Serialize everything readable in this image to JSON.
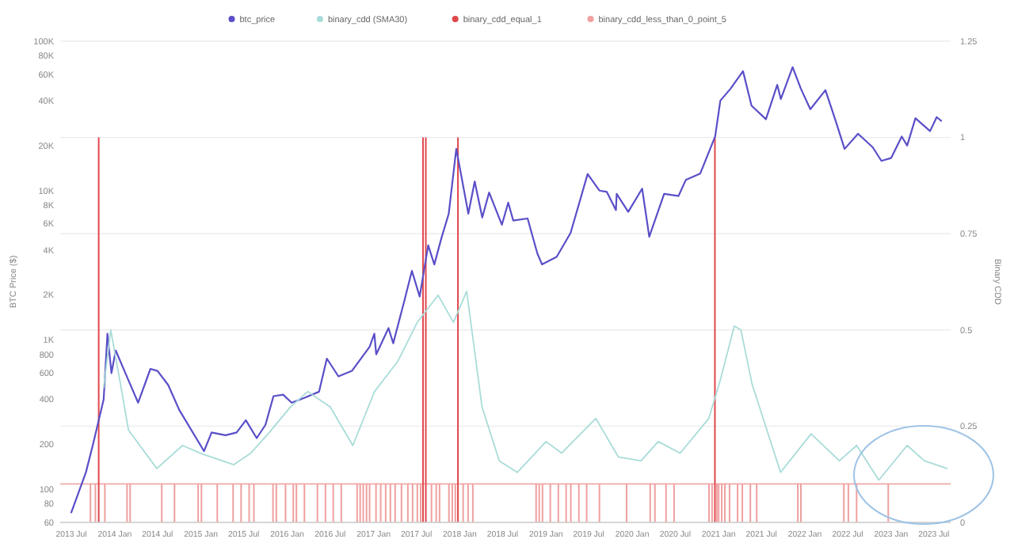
{
  "chart_data": {
    "type": "line",
    "ylabel": "BTC Price ($)",
    "y2label": "Binary CDD",
    "log": "y",
    "grid": "y",
    "legend": "top",
    "xlim": [
      "2013-05-15",
      "2023-09-10"
    ],
    "xticks": [
      {
        "value": "2013-07-01",
        "label": "2013 Jul"
      },
      {
        "value": "2014-01-01",
        "label": "2014 Jan"
      },
      {
        "value": "2014-07-01",
        "label": "2014 Jul"
      },
      {
        "value": "2015-01-01",
        "label": "2015 Jan"
      },
      {
        "value": "2015-07-01",
        "label": "2015 Jul"
      },
      {
        "value": "2016-01-01",
        "label": "2016 Jan"
      },
      {
        "value": "2016-07-01",
        "label": "2016 Jul"
      },
      {
        "value": "2017-01-01",
        "label": "2017 Jan"
      },
      {
        "value": "2017-07-01",
        "label": "2017 Jul"
      },
      {
        "value": "2018-01-01",
        "label": "2018 Jan"
      },
      {
        "value": "2018-07-01",
        "label": "2018 Jul"
      },
      {
        "value": "2019-01-01",
        "label": "2019 Jan"
      },
      {
        "value": "2019-07-01",
        "label": "2019 Jul"
      },
      {
        "value": "2020-01-01",
        "label": "2020 Jan"
      },
      {
        "value": "2020-07-01",
        "label": "2020 Jul"
      },
      {
        "value": "2021-01-01",
        "label": "2021 Jan"
      },
      {
        "value": "2021-07-01",
        "label": "2021 Jul"
      },
      {
        "value": "2022-01-01",
        "label": "2022 Jan"
      },
      {
        "value": "2022-07-01",
        "label": "2022 Jul"
      },
      {
        "value": "2023-01-01",
        "label": "2023 Jan"
      },
      {
        "value": "2023-07-01",
        "label": "2023 Jul"
      }
    ],
    "ylim": [
      60,
      100000
    ],
    "yticks": [
      60,
      80,
      100,
      200,
      400,
      600,
      800,
      {
        "value": 1000,
        "label": "1K"
      },
      {
        "value": 2000,
        "label": "2K"
      },
      {
        "value": 4000,
        "label": "4K"
      },
      {
        "value": 6000,
        "label": "6K"
      },
      {
        "value": 8000,
        "label": "8K"
      },
      {
        "value": 10000,
        "label": "10K"
      },
      {
        "value": 20000,
        "label": "20K"
      },
      {
        "value": 40000,
        "label": "40K"
      },
      {
        "value": 60000,
        "label": "60K"
      },
      {
        "value": 80000,
        "label": "80K"
      },
      {
        "value": 100000,
        "label": "100K"
      }
    ],
    "y2lim": [
      0,
      1.25
    ],
    "y2ticks": [
      0,
      0.25,
      0.5,
      0.75,
      1,
      1.25
    ],
    "ref_lines": [
      {
        "axis": "y2",
        "value": 0.1,
        "label": null,
        "color": "#f0a8a8"
      }
    ],
    "series": [
      {
        "name": "btc_price",
        "color": "#5a4fc8",
        "x": [
          "2013-07-01",
          "2013-09-01",
          "2013-10-01",
          "2013-11-15",
          "2013-12-01",
          "2013-12-18",
          "2014-01-05",
          "2014-02-25",
          "2014-04-10",
          "2014-06-01",
          "2014-07-01",
          "2014-08-15",
          "2014-10-01",
          "2015-01-14",
          "2015-02-15",
          "2015-04-15",
          "2015-06-01",
          "2015-07-10",
          "2015-08-25",
          "2015-10-01",
          "2015-11-04",
          "2015-12-15",
          "2016-01-20",
          "2016-03-15",
          "2016-05-15",
          "2016-06-17",
          "2016-08-05",
          "2016-10-01",
          "2016-12-15",
          "2017-01-04",
          "2017-01-12",
          "2017-03-05",
          "2017-03-25",
          "2017-05-10",
          "2017-06-12",
          "2017-07-15",
          "2017-08-20",
          "2017-09-15",
          "2017-10-15",
          "2017-11-15",
          "2017-12-17",
          "2018-02-06",
          "2018-03-05",
          "2018-04-06",
          "2018-05-05",
          "2018-06-28",
          "2018-07-25",
          "2018-08-15",
          "2018-10-15",
          "2018-11-25",
          "2018-12-15",
          "2019-02-15",
          "2019-04-15",
          "2019-06-26",
          "2019-08-15",
          "2019-09-15",
          "2019-10-24",
          "2019-10-27",
          "2019-12-15",
          "2020-02-12",
          "2020-03-13",
          "2020-05-15",
          "2020-07-15",
          "2020-08-15",
          "2020-10-15",
          "2020-12-17",
          "2021-01-08",
          "2021-02-20",
          "2021-04-14",
          "2021-05-20",
          "2021-07-20",
          "2021-09-06",
          "2021-09-21",
          "2021-11-10",
          "2021-12-15",
          "2022-01-24",
          "2022-03-29",
          "2022-05-12",
          "2022-06-18",
          "2022-08-14",
          "2022-10-15",
          "2022-11-21",
          "2023-01-01",
          "2023-02-15",
          "2023-03-10",
          "2023-04-14",
          "2023-06-15",
          "2023-07-13",
          "2023-08-01"
        ],
        "values": [
          70,
          130,
          200,
          400,
          1100,
          600,
          850,
          550,
          380,
          640,
          620,
          500,
          340,
          180,
          240,
          230,
          240,
          290,
          220,
          270,
          420,
          430,
          380,
          410,
          450,
          750,
          570,
          620,
          900,
          1100,
          800,
          1200,
          950,
          1800,
          2900,
          1950,
          4300,
          3200,
          4800,
          7000,
          19000,
          7000,
          11500,
          6600,
          9700,
          5900,
          8300,
          6300,
          6500,
          3800,
          3200,
          3600,
          5200,
          12900,
          10000,
          9800,
          7400,
          9500,
          7200,
          10300,
          4900,
          9500,
          9200,
          11800,
          13000,
          23000,
          40000,
          48000,
          63000,
          37000,
          30000,
          51000,
          41000,
          67000,
          48000,
          35000,
          47000,
          29000,
          19000,
          24000,
          19500,
          15800,
          16500,
          23000,
          20000,
          30500,
          25000,
          31000,
          29300
        ]
      },
      {
        "name": "binary_cdd (SMA30)",
        "type": "line",
        "axis": "y2",
        "color": "#a9dcd8",
        "x": [
          "2013-11-15",
          "2013-12-15",
          "2014-01-25",
          "2014-02-28",
          "2014-06-28",
          "2014-10-15",
          "2014-12-28",
          "2015-05-20",
          "2015-07-31",
          "2015-10-12",
          "2016-01-15",
          "2016-03-28",
          "2016-07-01",
          "2016-10-05",
          "2017-01-05",
          "2017-04-15",
          "2017-07-05",
          "2017-10-01",
          "2017-12-05",
          "2018-01-30",
          "2018-04-05",
          "2018-06-17",
          "2018-09-01",
          "2019-01-01",
          "2019-03-08",
          "2019-07-31",
          "2019-11-03",
          "2020-02-07",
          "2020-04-20",
          "2020-07-22",
          "2020-11-20",
          "2021-01-08",
          "2021-03-08",
          "2021-04-05",
          "2021-05-22",
          "2021-09-20",
          "2022-01-27",
          "2022-05-27",
          "2022-08-08",
          "2022-11-10",
          "2023-03-10",
          "2023-05-22",
          "2023-08-25"
        ],
        "values": [
          0.35,
          0.5,
          0.36,
          0.24,
          0.14,
          0.2,
          0.18,
          0.15,
          0.18,
          0.23,
          0.3,
          0.34,
          0.3,
          0.2,
          0.34,
          0.42,
          0.52,
          0.59,
          0.52,
          0.6,
          0.3,
          0.16,
          0.13,
          0.21,
          0.18,
          0.27,
          0.17,
          0.16,
          0.21,
          0.18,
          0.27,
          0.37,
          0.51,
          0.5,
          0.36,
          0.13,
          0.23,
          0.16,
          0.2,
          0.11,
          0.2,
          0.16,
          0.14
        ]
      },
      {
        "name": "binary_cdd_equal_1",
        "type": "bar",
        "axis": "y2",
        "color": "#e0474c",
        "x": [
          "2013-10-25",
          "2017-07-29",
          "2017-08-10",
          "2017-12-24",
          "2020-12-16"
        ],
        "values": [
          1,
          1,
          1,
          1,
          1
        ]
      },
      {
        "name": "binary_cdd_less_than_0_point_5",
        "type": "bar",
        "axis": "y2",
        "color": "#f0a0a0",
        "x": [
          "2013-09-20",
          "2013-10-11",
          "2013-11-20",
          "2014-02-22",
          "2014-03-07",
          "2014-07-19",
          "2014-09-11",
          "2014-12-20",
          "2015-01-03",
          "2015-03-11",
          "2015-05-17",
          "2015-06-20",
          "2015-07-24",
          "2015-08-13",
          "2015-11-02",
          "2015-11-16",
          "2015-12-25",
          "2016-01-27",
          "2016-02-09",
          "2016-03-14",
          "2016-05-08",
          "2016-06-11",
          "2016-07-14",
          "2016-08-17",
          "2016-10-23",
          "2016-11-05",
          "2016-11-18",
          "2016-12-02",
          "2016-12-15",
          "2017-01-11",
          "2017-01-31",
          "2017-02-21",
          "2017-03-13",
          "2017-04-02",
          "2017-04-29",
          "2017-05-26",
          "2017-06-15",
          "2017-07-05",
          "2017-07-19",
          "2017-09-03",
          "2017-09-23",
          "2017-10-07",
          "2017-11-16",
          "2017-11-30",
          "2017-12-13",
          "2018-01-15",
          "2018-02-05",
          "2018-02-25",
          "2018-11-20",
          "2018-12-03",
          "2018-12-17",
          "2019-01-19",
          "2019-02-22",
          "2019-03-27",
          "2019-04-16",
          "2019-05-20",
          "2019-06-22",
          "2019-08-15",
          "2019-12-08",
          "2020-03-17",
          "2020-04-06",
          "2020-05-23",
          "2020-06-26",
          "2020-11-21",
          "2020-12-04",
          "2020-12-24",
          "2021-01-01",
          "2021-01-14",
          "2021-01-27",
          "2021-02-16",
          "2021-03-22",
          "2021-04-11",
          "2021-05-15",
          "2021-06-11",
          "2021-12-02",
          "2021-12-15",
          "2022-06-15",
          "2022-07-04",
          "2022-08-08",
          "2022-12-20"
        ],
        "values": [
          0.1,
          0.1,
          0.1,
          0.1,
          0.1,
          0.1,
          0.1,
          0.1,
          0.1,
          0.1,
          0.1,
          0.1,
          0.1,
          0.1,
          0.1,
          0.1,
          0.1,
          0.1,
          0.1,
          0.1,
          0.1,
          0.1,
          0.1,
          0.1,
          0.1,
          0.1,
          0.1,
          0.1,
          0.1,
          0.1,
          0.1,
          0.1,
          0.1,
          0.1,
          0.1,
          0.1,
          0.1,
          0.1,
          0.1,
          0.1,
          0.1,
          0.1,
          0.1,
          0.1,
          0.1,
          0.1,
          0.1,
          0.1,
          0.1,
          0.1,
          0.1,
          0.1,
          0.1,
          0.1,
          0.1,
          0.1,
          0.1,
          0.1,
          0.1,
          0.1,
          0.1,
          0.1,
          0.1,
          0.1,
          0.1,
          0.1,
          0.1,
          0.1,
          0.1,
          0.1,
          0.1,
          0.1,
          0.1,
          0.1,
          0.1,
          0.1,
          0.1,
          0.1,
          0.1,
          0.1
        ]
      }
    ]
  }
}
